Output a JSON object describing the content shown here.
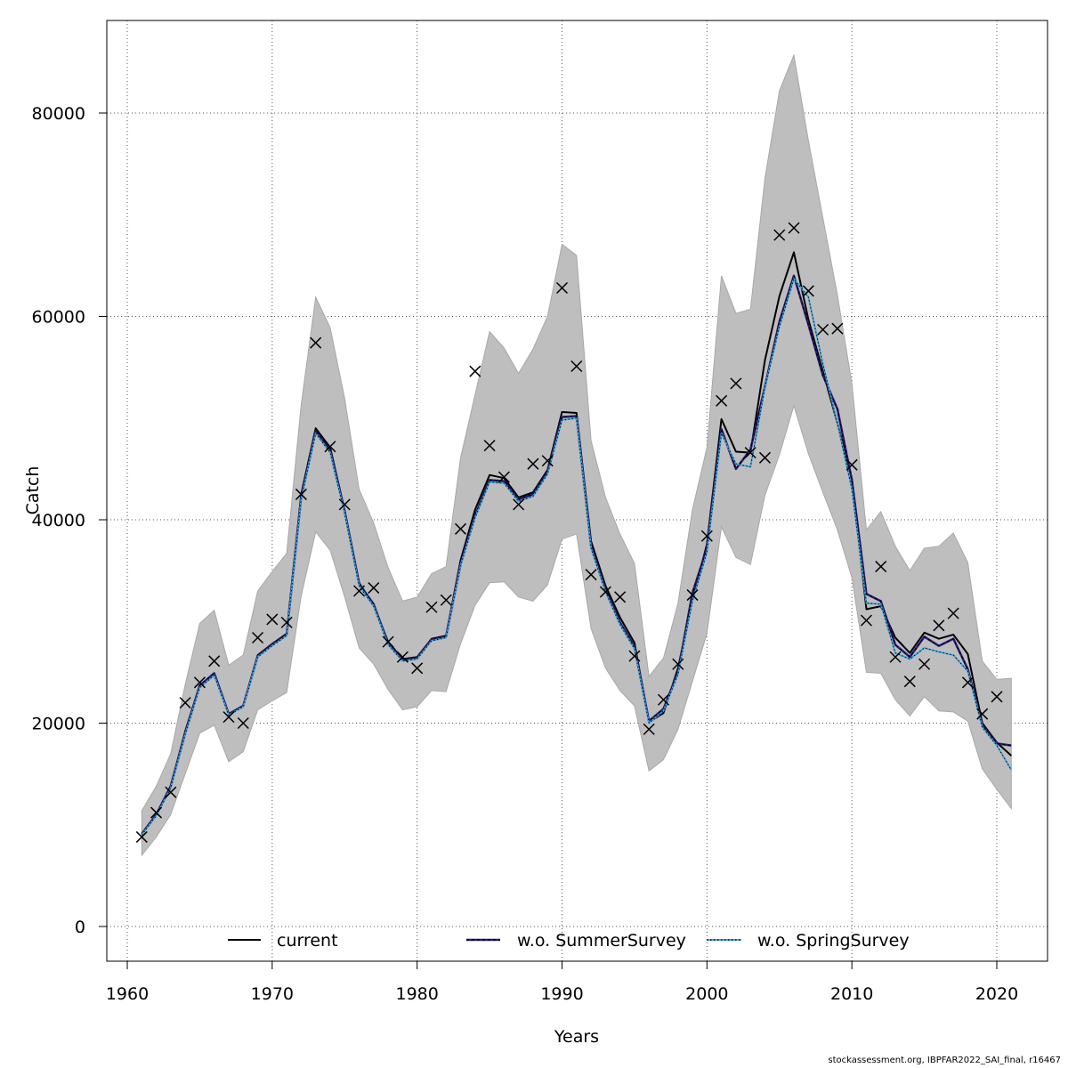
{
  "chart_data": {
    "type": "line",
    "title": "",
    "xlabel": "Years",
    "ylabel": "Catch",
    "xlim": [
      1961,
      2021
    ],
    "ylim": [
      0,
      88000
    ],
    "xticks": [
      1960,
      1970,
      1980,
      1990,
      2000,
      2010,
      2020
    ],
    "yticks": [
      0,
      20000,
      40000,
      60000,
      80000
    ],
    "grid": true,
    "x": [
      1961,
      1962,
      1963,
      1964,
      1965,
      1966,
      1967,
      1968,
      1969,
      1970,
      1971,
      1972,
      1973,
      1974,
      1975,
      1976,
      1977,
      1978,
      1979,
      1980,
      1981,
      1982,
      1983,
      1984,
      1985,
      1986,
      1987,
      1988,
      1989,
      1990,
      1991,
      1992,
      1993,
      1994,
      1995,
      1996,
      1997,
      1998,
      1999,
      2000,
      2001,
      2002,
      2003,
      2004,
      2005,
      2006,
      2007,
      2008,
      2009,
      2010,
      2011,
      2012,
      2013,
      2014,
      2015,
      2016,
      2017,
      2018,
      2019,
      2020,
      2021
    ],
    "band": {
      "name": "confidence interval",
      "lower": [
        7000,
        8800,
        11000,
        15000,
        19000,
        19800,
        16200,
        17200,
        21300,
        22200,
        23000,
        32500,
        38800,
        37000,
        32400,
        27400,
        25800,
        23300,
        21300,
        21600,
        23200,
        23100,
        27800,
        31600,
        33800,
        33900,
        32400,
        32000,
        33600,
        38100,
        38600,
        29300,
        25400,
        23200,
        21700,
        15300,
        16400,
        19400,
        24100,
        28800,
        39300,
        36300,
        35600,
        42400,
        46400,
        51200,
        46500,
        42700,
        39000,
        34300,
        25000,
        24900,
        22300,
        20700,
        22600,
        21200,
        21100,
        20200,
        15500,
        13500,
        11600
      ],
      "upper": [
        11400,
        13800,
        17000,
        23800,
        29800,
        31100,
        25700,
        26700,
        33000,
        34900,
        36700,
        51300,
        61900,
        58900,
        51900,
        43000,
        39700,
        35300,
        32000,
        32400,
        34700,
        35400,
        46100,
        52300,
        58500,
        56900,
        54400,
        56800,
        60000,
        67100,
        66000,
        47800,
        42200,
        38600,
        35700,
        24600,
        26400,
        31800,
        41000,
        47100,
        64000,
        60300,
        60700,
        73600,
        82200,
        85700,
        77300,
        69700,
        62100,
        53400,
        39000,
        40800,
        37400,
        35000,
        37200,
        37400,
        38700,
        35800,
        26100,
        24300,
        24400
      ]
    },
    "observed": {
      "name": "observed catch",
      "marker": "x",
      "values": [
        8800,
        11200,
        13200,
        22000,
        24000,
        26100,
        20600,
        20000,
        28400,
        30200,
        29900,
        42500,
        57400,
        47200,
        41500,
        33000,
        33300,
        28000,
        26500,
        25400,
        31400,
        32100,
        39100,
        54600,
        47300,
        44200,
        41500,
        45500,
        45800,
        62800,
        55100,
        34600,
        32900,
        32400,
        26600,
        19400,
        22300,
        25800,
        32600,
        38400,
        51700,
        53400,
        46600,
        46100,
        68000,
        68700,
        62500,
        58700,
        58800,
        45400,
        30100,
        35400,
        26500,
        24100,
        25800,
        29600,
        30800,
        24000,
        20900,
        22600,
        null
      ]
    },
    "series": [
      {
        "name": "current",
        "color": "#000000",
        "values": [
          9100,
          11000,
          13800,
          19200,
          23700,
          24900,
          20900,
          21700,
          26700,
          27800,
          28800,
          42500,
          49000,
          47100,
          40900,
          33800,
          31600,
          28000,
          26300,
          26500,
          28300,
          28600,
          36000,
          41000,
          44400,
          44100,
          42200,
          42700,
          44900,
          50600,
          50500,
          37900,
          33500,
          30400,
          27900,
          20100,
          21000,
          25400,
          32100,
          37600,
          49900,
          46700,
          46600,
          55700,
          62000,
          66300,
          59700,
          54600,
          49500,
          44000,
          31200,
          31500,
          28400,
          26900,
          28900,
          28300,
          28700,
          26800,
          20000,
          18100,
          16800
        ]
      },
      {
        "name": "w.o. SummerSurvey",
        "color": "#2b1a72",
        "values": [
          9100,
          11000,
          13800,
          19000,
          23700,
          24900,
          20900,
          21700,
          26600,
          27700,
          28700,
          42200,
          48700,
          46800,
          40800,
          33700,
          31700,
          27800,
          26200,
          26400,
          28200,
          28500,
          35600,
          40400,
          43900,
          43800,
          42000,
          42500,
          44700,
          50100,
          50200,
          37400,
          33100,
          29900,
          27500,
          20200,
          21400,
          25000,
          32800,
          37200,
          48900,
          45000,
          46900,
          53100,
          59500,
          64000,
          59200,
          54200,
          50900,
          43900,
          32700,
          32000,
          27700,
          26500,
          28500,
          27600,
          28300,
          25300,
          19800,
          18000,
          17800
        ]
      },
      {
        "name": "w.o. SpringSurvey",
        "color": "#3da5e0",
        "values": [
          9000,
          10900,
          13600,
          18900,
          23500,
          24700,
          20800,
          21600,
          26500,
          27600,
          28600,
          42000,
          48500,
          46600,
          40600,
          33500,
          31500,
          27700,
          26100,
          26300,
          28100,
          28400,
          35500,
          40200,
          43700,
          43600,
          41800,
          42300,
          44500,
          49800,
          50000,
          37200,
          32900,
          29700,
          27300,
          20000,
          21200,
          24800,
          32000,
          36800,
          48500,
          45500,
          45200,
          53000,
          59000,
          63700,
          61900,
          55300,
          49500,
          43000,
          31800,
          31700,
          26900,
          26300,
          27400,
          27000,
          26700,
          25100,
          19600,
          17800,
          15400
        ]
      }
    ],
    "legend": {
      "position": "bottom-center",
      "entries": [
        "current",
        "w.o. SummerSurvey",
        "w.o. SpringSurvey"
      ]
    }
  },
  "footer": "stockassessment.org, IBPFAR2022_SAI_final, r16467"
}
